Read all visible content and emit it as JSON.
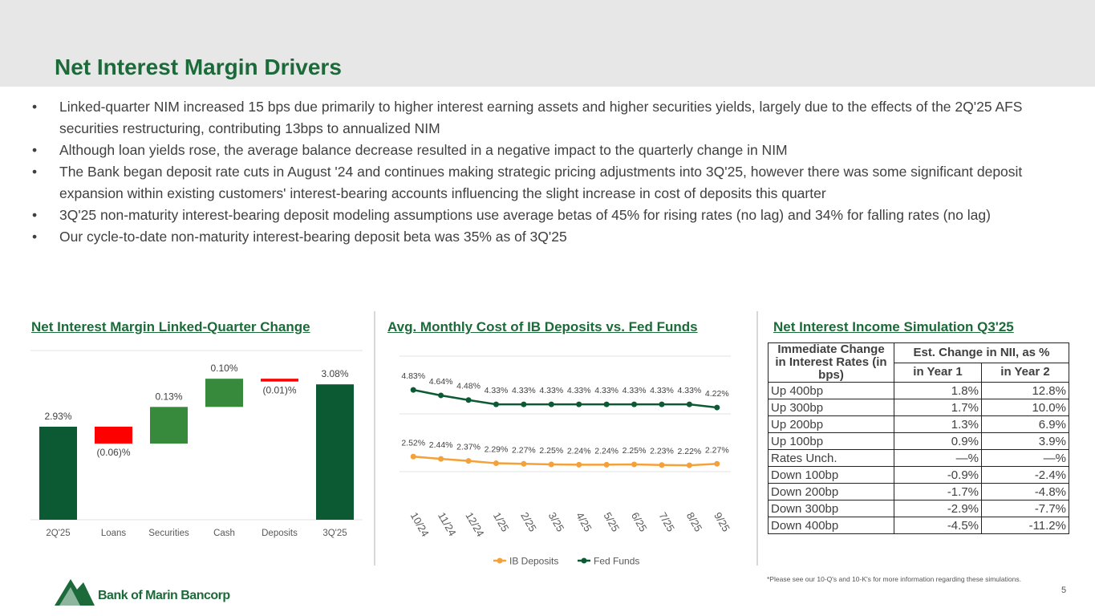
{
  "title": "Net Interest Margin Drivers",
  "bullets": [
    "Linked-quarter NIM increased 15 bps due primarily to higher interest earning assets and higher securities yields, largely due to the effects of the 2Q'25 AFS securities restructuring, contributing 13bps to annualized NIM",
    "Although loan yields rose, the average balance decrease resulted in a negative impact to the quarterly change in NIM",
    "The Bank began deposit rate cuts in August '24 and continues making strategic pricing adjustments into 3Q'25, however there was some significant deposit expansion within existing customers' interest-bearing accounts influencing the slight increase in cost of deposits this quarter",
    "3Q'25 non-maturity interest-bearing deposit modeling assumptions use average betas of 45% for rising rates (no lag) and 34% for falling rates (no lag)",
    "Our cycle-to-date non-maturity interest-bearing deposit beta was 35% as of 3Q'25"
  ],
  "chart_data": [
    {
      "type": "waterfall",
      "title": "Net Interest Margin Linked-Quarter Change",
      "categories": [
        "2Q'25",
        "Loans",
        "Securities",
        "Cash",
        "Deposits",
        "3Q'25"
      ],
      "values": [
        2.93,
        -0.06,
        0.13,
        0.1,
        -0.01,
        3.08
      ],
      "value_labels": [
        "2.93%",
        "(0.06)%",
        "0.13%",
        "0.10%",
        "(0.01)%",
        "3.08%"
      ],
      "ylim": [
        2.6,
        3.2
      ],
      "color_total": "#0b5a34",
      "color_increase": "#378a3c",
      "color_decrease": "#ff0000"
    },
    {
      "type": "line",
      "title": "Avg. Monthly Cost of IB Deposits vs. Fed Funds",
      "categories": [
        "10/24",
        "11/24",
        "12/24",
        "1/25",
        "2/25",
        "3/25",
        "4/25",
        "5/25",
        "6/25",
        "7/25",
        "8/25",
        "9/25"
      ],
      "series": [
        {
          "name": "IB Deposits",
          "color": "#f4a13a",
          "values": [
            2.52,
            2.44,
            2.37,
            2.29,
            2.27,
            2.25,
            2.24,
            2.24,
            2.25,
            2.23,
            2.22,
            2.27
          ],
          "value_labels": [
            "2.52%",
            "2.44%",
            "2.37%",
            "2.29%",
            "2.27%",
            "2.25%",
            "2.24%",
            "2.24%",
            "2.25%",
            "2.23%",
            "2.22%",
            "2.27%"
          ]
        },
        {
          "name": "Fed Funds",
          "color": "#0b5a34",
          "values": [
            4.83,
            4.64,
            4.48,
            4.33,
            4.33,
            4.33,
            4.33,
            4.33,
            4.33,
            4.33,
            4.33,
            4.22
          ],
          "value_labels": [
            "4.83%",
            "4.64%",
            "4.48%",
            "4.33%",
            "4.33%",
            "4.33%",
            "4.33%",
            "4.33%",
            "4.33%",
            "4.33%",
            "4.33%",
            "4.22%"
          ]
        }
      ],
      "ylim": [
        1,
        6
      ],
      "gridlines": [
        2,
        4,
        6
      ],
      "legend": "bottom"
    }
  ],
  "table": {
    "title": "Net Interest Income Simulation Q3'25",
    "header": {
      "row_label": "Immediate Change in Interest Rates (in bps)",
      "group": "Est. Change in NII, as %",
      "columns": [
        "in Year 1",
        "in Year 2"
      ]
    },
    "rows": [
      [
        "Up 400bp",
        "1.8%",
        "12.8%"
      ],
      [
        "Up 300bp",
        "1.7%",
        "10.0%"
      ],
      [
        "Up 200bp",
        "1.3%",
        "6.9%"
      ],
      [
        "Up 100bp",
        "0.9%",
        "3.9%"
      ],
      [
        "Rates Unch.",
        "—%",
        "—%"
      ],
      [
        "Down 100bp",
        "-0.9%",
        "-2.4%"
      ],
      [
        "Down 200bp",
        "-1.7%",
        "-4.8%"
      ],
      [
        "Down 300bp",
        "-2.9%",
        "-7.7%"
      ],
      [
        "Down 400bp",
        "-4.5%",
        "-11.2%"
      ]
    ]
  },
  "footnote": "*Please see our 10-Q's and 10-K's for more information regarding these simulations.",
  "logo": "Bank of Marin Bancorp",
  "page_number": "5"
}
